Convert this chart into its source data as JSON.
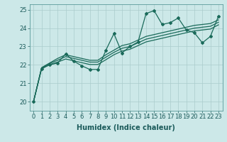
{
  "bg_color": "#cce8e8",
  "grid_color": "#aacccc",
  "line_color": "#1a6a5a",
  "xlabel": "Humidex (Indice chaleur)",
  "xlabel_fontsize": 7,
  "tick_fontsize": 6,
  "ylim": [
    19.5,
    25.3
  ],
  "xlim": [
    -0.5,
    23.5
  ],
  "yticks": [
    20,
    21,
    22,
    23,
    24,
    25
  ],
  "xticks": [
    0,
    1,
    2,
    3,
    4,
    5,
    6,
    7,
    8,
    9,
    10,
    11,
    12,
    13,
    14,
    15,
    16,
    17,
    18,
    19,
    20,
    21,
    22,
    23
  ],
  "series_main": [
    20.0,
    21.8,
    22.0,
    22.1,
    22.6,
    22.2,
    21.95,
    21.75,
    21.75,
    22.8,
    23.7,
    22.65,
    23.0,
    23.25,
    24.8,
    24.95,
    24.2,
    24.3,
    24.55,
    23.9,
    23.75,
    23.2,
    23.55,
    24.65
  ],
  "series_trends": [
    [
      20.0,
      21.85,
      22.1,
      22.35,
      22.55,
      22.45,
      22.35,
      22.25,
      22.25,
      22.55,
      22.8,
      23.05,
      23.15,
      23.35,
      23.55,
      23.65,
      23.75,
      23.85,
      23.95,
      24.05,
      24.15,
      24.2,
      24.25,
      24.45
    ],
    [
      20.0,
      21.82,
      22.08,
      22.25,
      22.45,
      22.35,
      22.25,
      22.15,
      22.15,
      22.42,
      22.68,
      22.9,
      23.0,
      23.2,
      23.4,
      23.5,
      23.6,
      23.7,
      23.8,
      23.9,
      24.0,
      24.05,
      24.1,
      24.32
    ],
    [
      20.0,
      21.78,
      22.02,
      22.15,
      22.32,
      22.22,
      22.12,
      22.02,
      22.02,
      22.28,
      22.55,
      22.75,
      22.85,
      23.05,
      23.25,
      23.35,
      23.45,
      23.55,
      23.65,
      23.75,
      23.85,
      23.9,
      23.95,
      24.18
    ]
  ],
  "marker": "D",
  "marker_size": 2.0,
  "line_width": 0.9
}
